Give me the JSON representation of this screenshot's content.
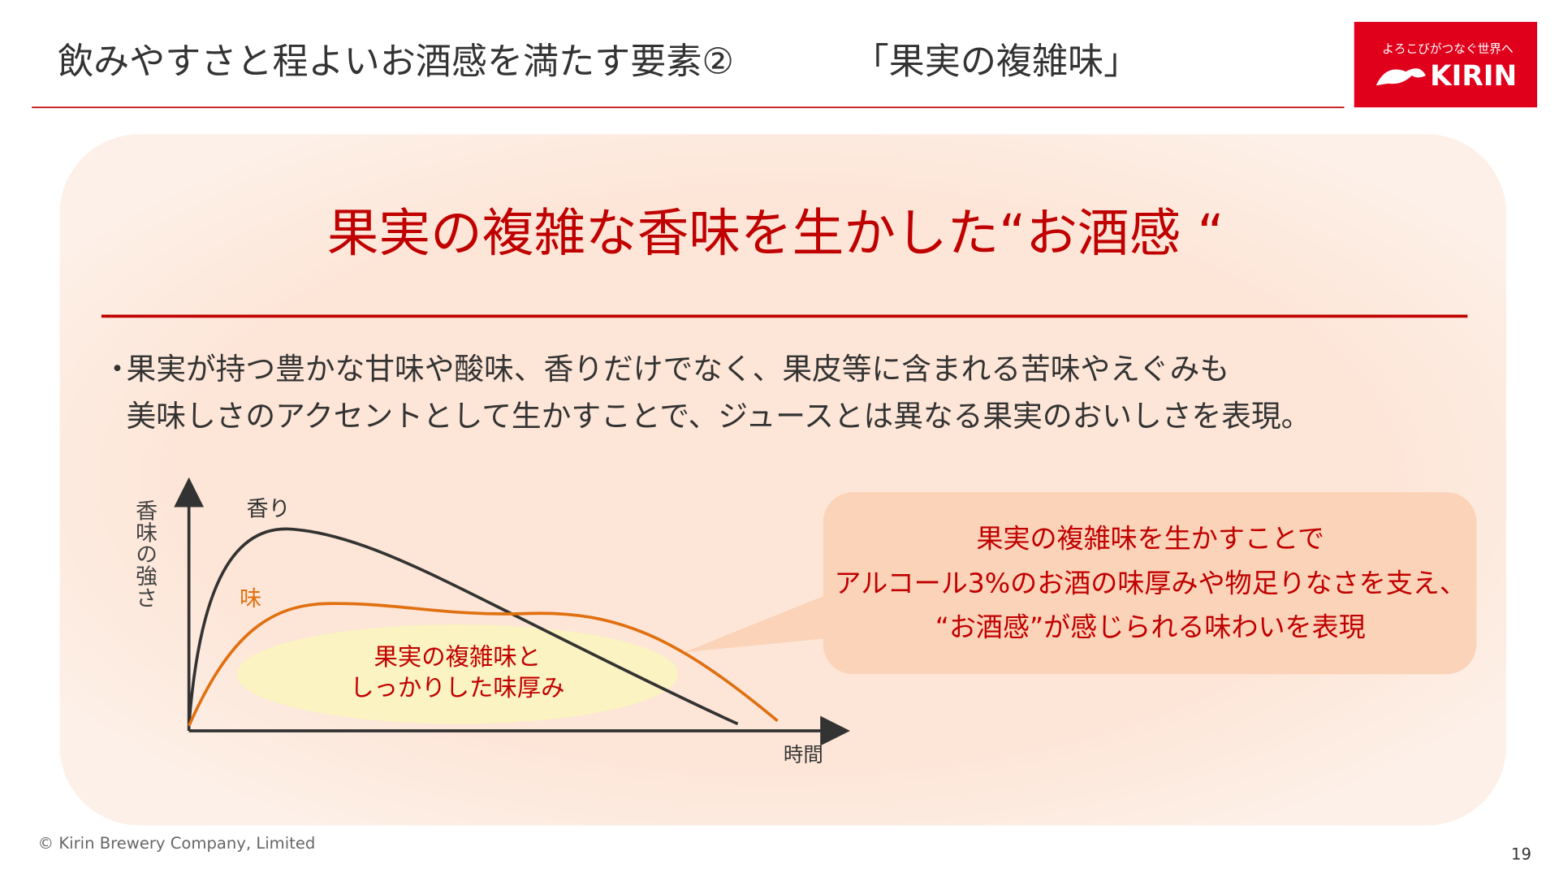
{
  "header": {
    "title": "飲みやすさと程よいお酒感を満たす要素②",
    "subtitle": "「果実の複雑味」"
  },
  "logo": {
    "tagline": "よろこびがつなぐ世界へ",
    "brand": "KIRIN"
  },
  "panel": {
    "heading": "果実の複雑な香味を生かした“お酒感 “",
    "bullet": {
      "marker": "・",
      "lines": [
        "果実が持つ豊かな甘味や酸味、香りだけでなく、果皮等に含まれる苦味やえぐみも",
        "美味しさのアクセントとして生かすことで、ジュースとは異なる果実のおいしさを表現。"
      ]
    }
  },
  "diagram": {
    "y_label": "香味の強さ",
    "x_label": "時間",
    "curve_aroma": "香り",
    "curve_taste": "味",
    "highlight": [
      "果実の複雑味と",
      "しっかりした味厚み"
    ]
  },
  "callout": {
    "lines": [
      "果実の複雑味を生かすことで",
      "アルコール3%のお酒の味厚みや物足りなさを支え、",
      "“お酒感”が感じられる味わいを表現"
    ]
  },
  "footer": {
    "copyright": "© Kirin  Brewery Company, Limited",
    "page_number": "19"
  }
}
